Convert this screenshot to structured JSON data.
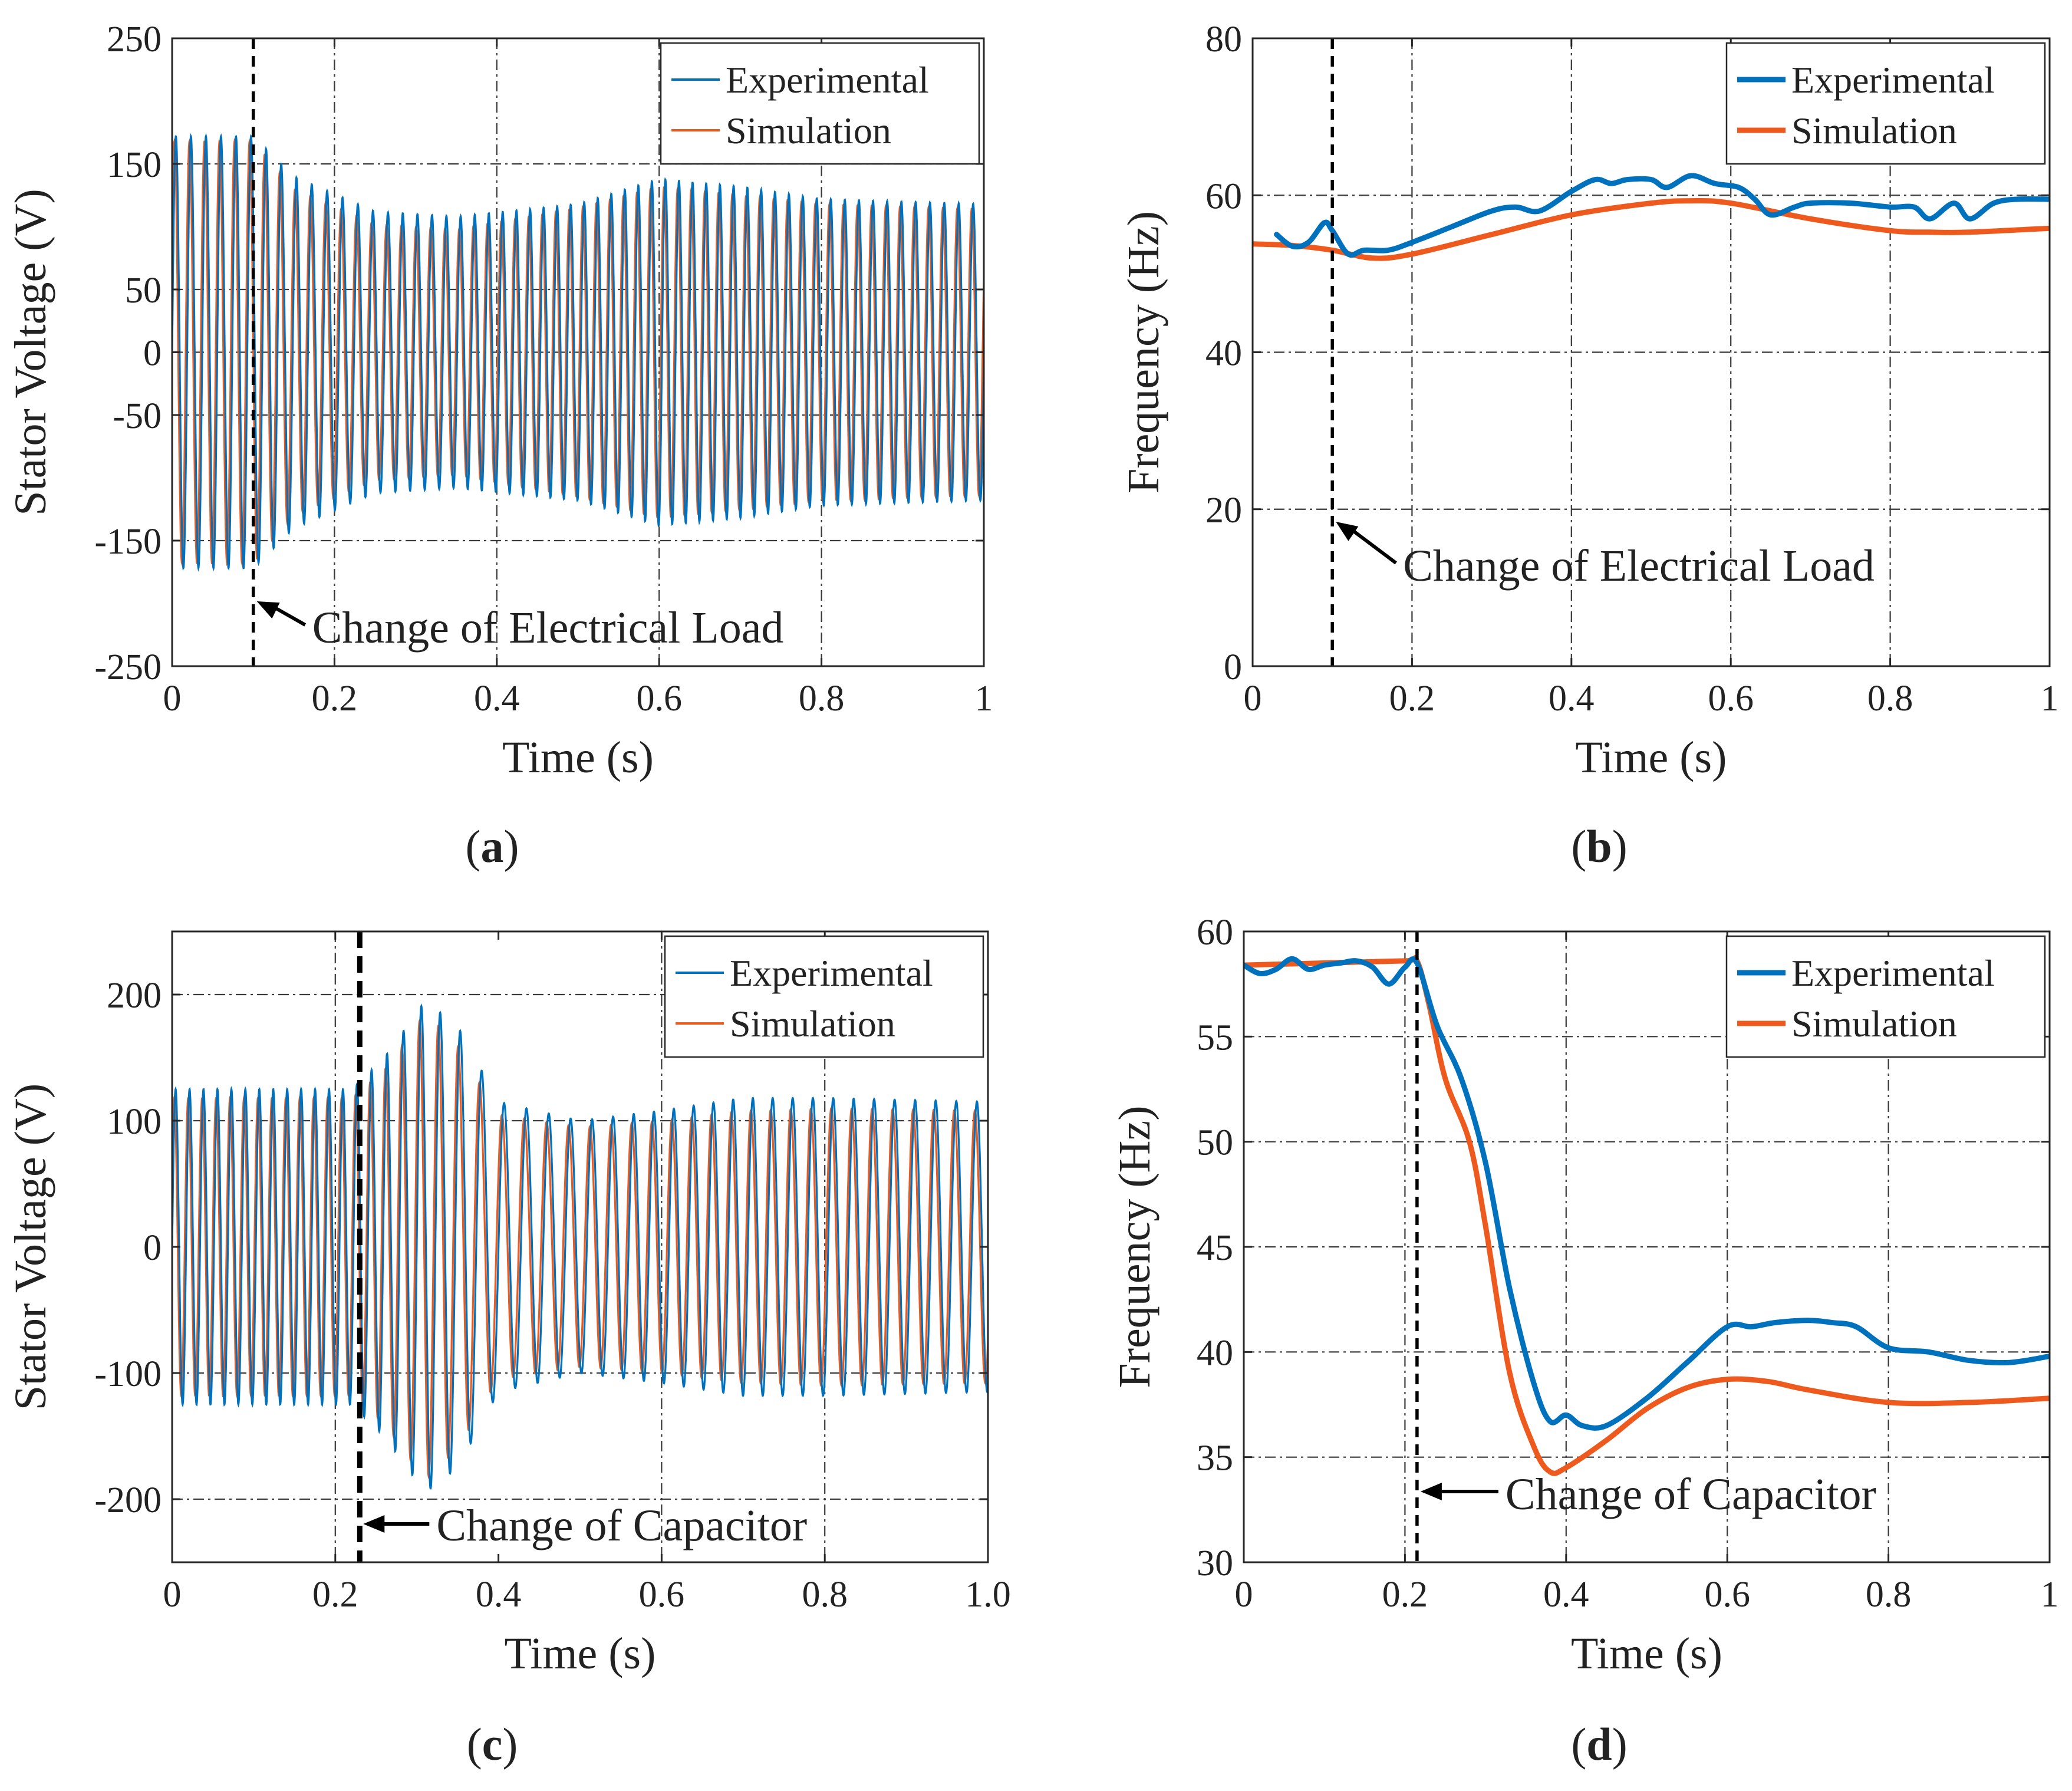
{
  "colors": {
    "experimental": "#0072BD",
    "simulation": "#EE5A1E",
    "grid": "#3a3a3a",
    "marker": "#000000"
  },
  "chart_data": [
    {
      "id": "a",
      "panel_label": "a",
      "type": "line",
      "xlabel": "Time (s)",
      "ylabel": "Stator Voltage (V)",
      "xlim": [
        0,
        1
      ],
      "ylim": [
        -250,
        250
      ],
      "xticks": [
        0,
        0.2,
        0.4,
        0.6,
        0.8,
        1
      ],
      "xticklabels": [
        "0",
        "0.2",
        "0.4",
        "0.6",
        "0.8",
        "1"
      ],
      "yticks": [
        -250,
        -150,
        -50,
        0,
        50,
        150,
        250
      ],
      "yticklabels": [
        "-250",
        "-150",
        "-50",
        "0",
        "50",
        "150",
        "250"
      ],
      "grid_x": [
        0.2,
        0.4,
        0.6,
        0.8
      ],
      "grid_y": [
        -150,
        -50,
        0,
        50,
        150
      ],
      "grid": true,
      "legend": {
        "position": "top-right",
        "entries": [
          "Experimental",
          "Simulation"
        ]
      },
      "event": {
        "x": 0.1,
        "label": "Change of Electrical Load"
      },
      "waveform": {
        "frequency_hz": [
          [
            0,
            54
          ],
          [
            0.1,
            54
          ],
          [
            0.2,
            52.5
          ],
          [
            0.45,
            60
          ],
          [
            0.6,
            60
          ],
          [
            1.0,
            56
          ]
        ],
        "amplitude_experimental": [
          [
            0,
            172
          ],
          [
            0.1,
            172
          ],
          [
            0.15,
            140
          ],
          [
            0.25,
            112
          ],
          [
            0.35,
            108
          ],
          [
            0.5,
            118
          ],
          [
            0.6,
            138
          ],
          [
            0.7,
            132
          ],
          [
            0.8,
            122
          ],
          [
            1.0,
            118
          ]
        ],
        "amplitude_simulation": [
          [
            0,
            168
          ],
          [
            0.1,
            168
          ],
          [
            0.15,
            130
          ],
          [
            0.25,
            102
          ],
          [
            0.35,
            98
          ],
          [
            0.5,
            115
          ],
          [
            0.6,
            132
          ],
          [
            0.7,
            125
          ],
          [
            0.8,
            118
          ],
          [
            1.0,
            114
          ]
        ]
      },
      "series": [
        {
          "name": "Experimental",
          "color": "#0072BD"
        },
        {
          "name": "Simulation",
          "color": "#EE5A1E"
        }
      ]
    },
    {
      "id": "b",
      "panel_label": "b",
      "type": "line",
      "xlabel": "Time (s)",
      "ylabel": "Frequency (Hz)",
      "xlim": [
        0,
        1
      ],
      "ylim": [
        0,
        80
      ],
      "xticks": [
        0,
        0.2,
        0.4,
        0.6,
        0.8,
        1
      ],
      "xticklabels": [
        "0",
        "0.2",
        "0.4",
        "0.6",
        "0.8",
        "1"
      ],
      "yticks": [
        0,
        20,
        40,
        60,
        80
      ],
      "yticklabels": [
        "0",
        "20",
        "40",
        "60",
        "80"
      ],
      "grid_x": [
        0.2,
        0.4,
        0.6,
        0.8
      ],
      "grid_y": [
        20,
        40,
        60
      ],
      "grid": true,
      "legend": {
        "position": "top-right",
        "entries": [
          "Experimental",
          "Simulation"
        ]
      },
      "event": {
        "x": 0.1,
        "label": "Change of Electrical Load"
      },
      "series": [
        {
          "name": "Experimental",
          "color": "#0072BD",
          "x": [
            0.03,
            0.05,
            0.07,
            0.09,
            0.1,
            0.12,
            0.14,
            0.17,
            0.2,
            0.25,
            0.3,
            0.33,
            0.36,
            0.4,
            0.43,
            0.45,
            0.47,
            0.5,
            0.52,
            0.55,
            0.58,
            0.61,
            0.63,
            0.65,
            0.68,
            0.7,
            0.75,
            0.8,
            0.83,
            0.85,
            0.88,
            0.9,
            0.93,
            0.96,
            1.0
          ],
          "y": [
            55,
            53.5,
            54,
            56.5,
            55.5,
            52.5,
            53,
            53,
            54,
            56,
            58,
            58.5,
            58,
            60.5,
            62,
            61.5,
            62,
            62,
            61,
            62.5,
            61.5,
            61,
            59.5,
            57.5,
            58.5,
            59,
            59,
            58.5,
            58.5,
            57,
            59,
            57,
            59,
            59.5,
            59.5
          ]
        },
        {
          "name": "Simulation",
          "color": "#EE5A1E",
          "x": [
            0,
            0.05,
            0.1,
            0.15,
            0.2,
            0.3,
            0.4,
            0.5,
            0.55,
            0.6,
            0.7,
            0.8,
            0.85,
            0.9,
            1.0
          ],
          "y": [
            53.8,
            53.6,
            53,
            52,
            52.5,
            55,
            57.5,
            59,
            59.3,
            59,
            57,
            55.5,
            55.3,
            55.3,
            55.8
          ]
        }
      ]
    },
    {
      "id": "c",
      "panel_label": "c",
      "type": "line",
      "xlabel": "Time (s)",
      "ylabel": "Stator Voltage (V)",
      "xlim": [
        0,
        1
      ],
      "ylim": [
        -250,
        250
      ],
      "xticks": [
        0,
        0.2,
        0.4,
        0.6,
        0.8,
        1.0
      ],
      "xticklabels": [
        "0",
        "0.2",
        "0.4",
        "0.6",
        "0.8",
        "1.0"
      ],
      "yticks": [
        -200,
        -100,
        0,
        100,
        200
      ],
      "yticklabels": [
        "-200",
        "-100",
        "0",
        "100",
        "200"
      ],
      "grid_x": [
        0.2,
        0.6,
        0.8
      ],
      "grid_y": [
        -200,
        -100,
        100,
        200
      ],
      "grid": true,
      "legend": {
        "position": "top-right",
        "entries": [
          "Experimental",
          "Simulation"
        ]
      },
      "event": {
        "x": 0.23,
        "label": "Change of Capacitor"
      },
      "waveform": {
        "frequency_hz": [
          [
            0,
            58.5
          ],
          [
            0.22,
            58.5
          ],
          [
            0.3,
            45
          ],
          [
            0.38,
            36.5
          ],
          [
            0.45,
            36.5
          ],
          [
            0.6,
            41
          ],
          [
            0.7,
            41.5
          ],
          [
            0.8,
            40
          ],
          [
            1.0,
            39.5
          ]
        ],
        "amplitude_experimental": [
          [
            0,
            125
          ],
          [
            0.22,
            125
          ],
          [
            0.26,
            150
          ],
          [
            0.31,
            195
          ],
          [
            0.35,
            175
          ],
          [
            0.4,
            115
          ],
          [
            0.5,
            100
          ],
          [
            0.6,
            108
          ],
          [
            0.7,
            118
          ],
          [
            0.8,
            118
          ],
          [
            1.0,
            115
          ]
        ],
        "amplitude_simulation": [
          [
            0,
            118
          ],
          [
            0.22,
            118
          ],
          [
            0.26,
            140
          ],
          [
            0.31,
            185
          ],
          [
            0.35,
            160
          ],
          [
            0.4,
            105
          ],
          [
            0.5,
            95
          ],
          [
            0.6,
            100
          ],
          [
            0.7,
            108
          ],
          [
            0.8,
            110
          ],
          [
            1.0,
            108
          ]
        ]
      },
      "series": [
        {
          "name": "Experimental",
          "color": "#0072BD"
        },
        {
          "name": "Simulation",
          "color": "#EE5A1E"
        }
      ]
    },
    {
      "id": "d",
      "panel_label": "d",
      "type": "line",
      "xlabel": "Time (s)",
      "ylabel": "Frequency (Hz)",
      "xlim": [
        0,
        1
      ],
      "ylim": [
        30,
        60
      ],
      "xticks": [
        0,
        0.2,
        0.4,
        0.6,
        0.8,
        1
      ],
      "xticklabels": [
        "0",
        "0.2",
        "0.4",
        "0.6",
        "0.8",
        "1"
      ],
      "yticks": [
        30,
        35,
        40,
        45,
        50,
        55,
        60
      ],
      "yticklabels": [
        "30",
        "35",
        "40",
        "45",
        "50",
        "55",
        "60"
      ],
      "grid_x": [
        0.2,
        0.4,
        0.6,
        0.8
      ],
      "grid_y": [
        35,
        40,
        45,
        50,
        55
      ],
      "grid": true,
      "legend": {
        "position": "top-right",
        "entries": [
          "Experimental",
          "Simulation"
        ]
      },
      "event": {
        "x": 0.215,
        "label": "Change of Capacitor"
      },
      "series": [
        {
          "name": "Experimental",
          "color": "#0072BD",
          "x": [
            0,
            0.02,
            0.04,
            0.06,
            0.08,
            0.1,
            0.12,
            0.14,
            0.16,
            0.18,
            0.2,
            0.215,
            0.24,
            0.27,
            0.3,
            0.33,
            0.36,
            0.38,
            0.4,
            0.42,
            0.45,
            0.5,
            0.55,
            0.6,
            0.63,
            0.66,
            0.7,
            0.73,
            0.76,
            0.8,
            0.85,
            0.9,
            0.95,
            1.0
          ],
          "y": [
            58.4,
            58,
            58.2,
            58.7,
            58.2,
            58.4,
            58.5,
            58.6,
            58.3,
            57.5,
            58.3,
            58.5,
            55.5,
            53,
            49,
            43,
            38.5,
            36.7,
            37,
            36.5,
            36.5,
            37.8,
            39.5,
            41.2,
            41.2,
            41.4,
            41.5,
            41.4,
            41.2,
            40.2,
            40,
            39.6,
            39.5,
            39.8
          ]
        },
        {
          "name": "Simulation",
          "color": "#EE5A1E",
          "x": [
            0,
            0.1,
            0.2,
            0.215,
            0.23,
            0.25,
            0.28,
            0.3,
            0.33,
            0.36,
            0.38,
            0.4,
            0.45,
            0.5,
            0.55,
            0.6,
            0.65,
            0.7,
            0.8,
            0.9,
            1.0
          ],
          "y": [
            58.4,
            58.5,
            58.6,
            58.6,
            56.5,
            53,
            50,
            46,
            39,
            35.5,
            34.3,
            34.5,
            35.8,
            37.3,
            38.3,
            38.7,
            38.6,
            38.2,
            37.6,
            37.6,
            37.8
          ]
        }
      ]
    }
  ]
}
